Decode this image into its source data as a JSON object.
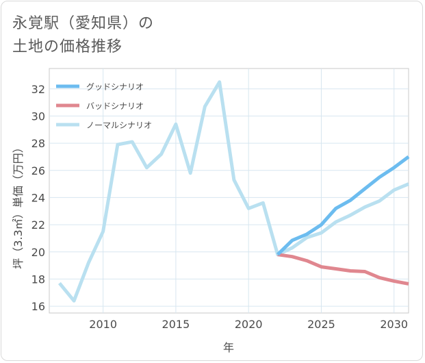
{
  "title": {
    "line1": "永覚駅（愛知県）の",
    "line2": "土地の価格推移"
  },
  "chart_data": {
    "type": "line",
    "xlabel": "年",
    "ylabel": "坪（3.3㎡）単価（万円）",
    "xlim": [
      2006.3,
      2031
    ],
    "ylim": [
      15.5,
      33.5
    ],
    "x_ticks": [
      2010,
      2015,
      2020,
      2025,
      2030
    ],
    "y_ticks": [
      16,
      18,
      20,
      22,
      24,
      26,
      28,
      30,
      32
    ],
    "grid": true,
    "legend_position": "top-left",
    "series": [
      {
        "name": "グッドシナリオ",
        "color": "#6cbcef",
        "x": [
          2022,
          2023,
          2024,
          2025,
          2026,
          2027,
          2028,
          2029,
          2030,
          2031
        ],
        "y": [
          19.8,
          20.85,
          21.3,
          22.0,
          23.2,
          23.8,
          24.65,
          25.5,
          26.2,
          27.0
        ]
      },
      {
        "name": "バッドシナリオ",
        "color": "#e0878f",
        "x": [
          2022,
          2023,
          2024,
          2025,
          2026,
          2027,
          2028,
          2029,
          2030,
          2031
        ],
        "y": [
          19.8,
          19.65,
          19.35,
          18.9,
          18.75,
          18.6,
          18.55,
          18.1,
          17.85,
          17.65
        ]
      },
      {
        "name": "ノーマルシナリオ",
        "color": "#b9e0f0",
        "x": [
          2007,
          2008,
          2009,
          2010,
          2011,
          2012,
          2013,
          2014,
          2015,
          2016,
          2017,
          2018,
          2019,
          2020,
          2021,
          2022,
          2023,
          2024,
          2025,
          2026,
          2027,
          2028,
          2029,
          2030,
          2031
        ],
        "y": [
          17.7,
          16.4,
          19.2,
          21.5,
          27.9,
          28.1,
          26.2,
          27.2,
          29.4,
          25.8,
          30.7,
          32.5,
          25.3,
          23.2,
          23.6,
          19.8,
          20.3,
          21.05,
          21.4,
          22.2,
          22.7,
          23.3,
          23.75,
          24.55,
          25.0
        ]
      }
    ]
  }
}
